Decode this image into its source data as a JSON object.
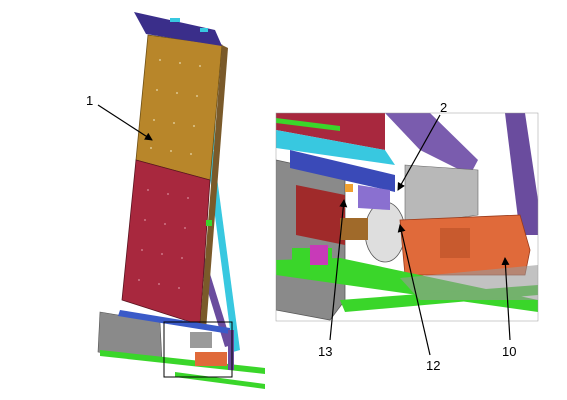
{
  "callouts": {
    "c1": "1",
    "c2": "2",
    "c10": "10",
    "c12": "12",
    "c13": "13"
  },
  "colors": {
    "mustard_panel": "#b8862a",
    "red_panel": "#a8283e",
    "purple_frame": "#6a4c9e",
    "cyan_rail": "#38c8e0",
    "green_base": "#3ad62a",
    "orange_motor": "#e06a3a",
    "grey_housing": "#8a8a8a",
    "dark_blue_top": "#3a2e8a"
  },
  "icons": {
    "leader_arrow": "arrowhead"
  }
}
